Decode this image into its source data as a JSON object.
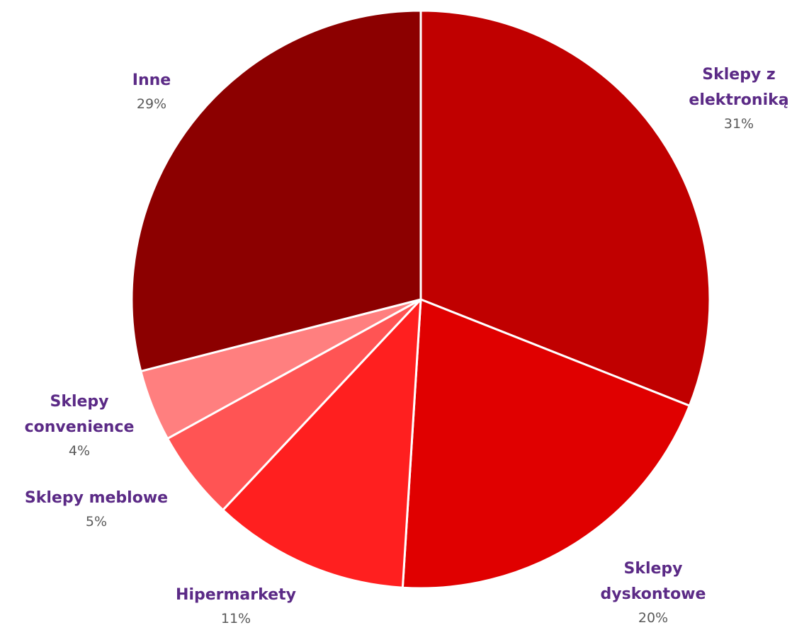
{
  "chart_data": {
    "type": "pie",
    "title": "",
    "start_angle_deg": 0,
    "direction": "clockwise",
    "slices": [
      {
        "label_lines": [
          "Sklepy z",
          "elektroniką"
        ],
        "value": 31,
        "value_label": "31%",
        "color": "#c00000"
      },
      {
        "label_lines": [
          "Sklepy",
          "dyskontowe"
        ],
        "value": 20,
        "value_label": "20%",
        "color": "#e00000"
      },
      {
        "label_lines": [
          "Hipermarkety"
        ],
        "value": 11,
        "value_label": "11%",
        "color": "#ff1f1f"
      },
      {
        "label_lines": [
          "Sklepy meblowe"
        ],
        "value": 5,
        "value_label": "5%",
        "color": "#ff5454"
      },
      {
        "label_lines": [
          "Sklepy",
          "convenience"
        ],
        "value": 4,
        "value_label": "4%",
        "color": "#ff7f7f"
      },
      {
        "label_lines": [
          "Inne"
        ],
        "value": 29,
        "value_label": "29%",
        "color": "#8c0000"
      }
    ]
  }
}
